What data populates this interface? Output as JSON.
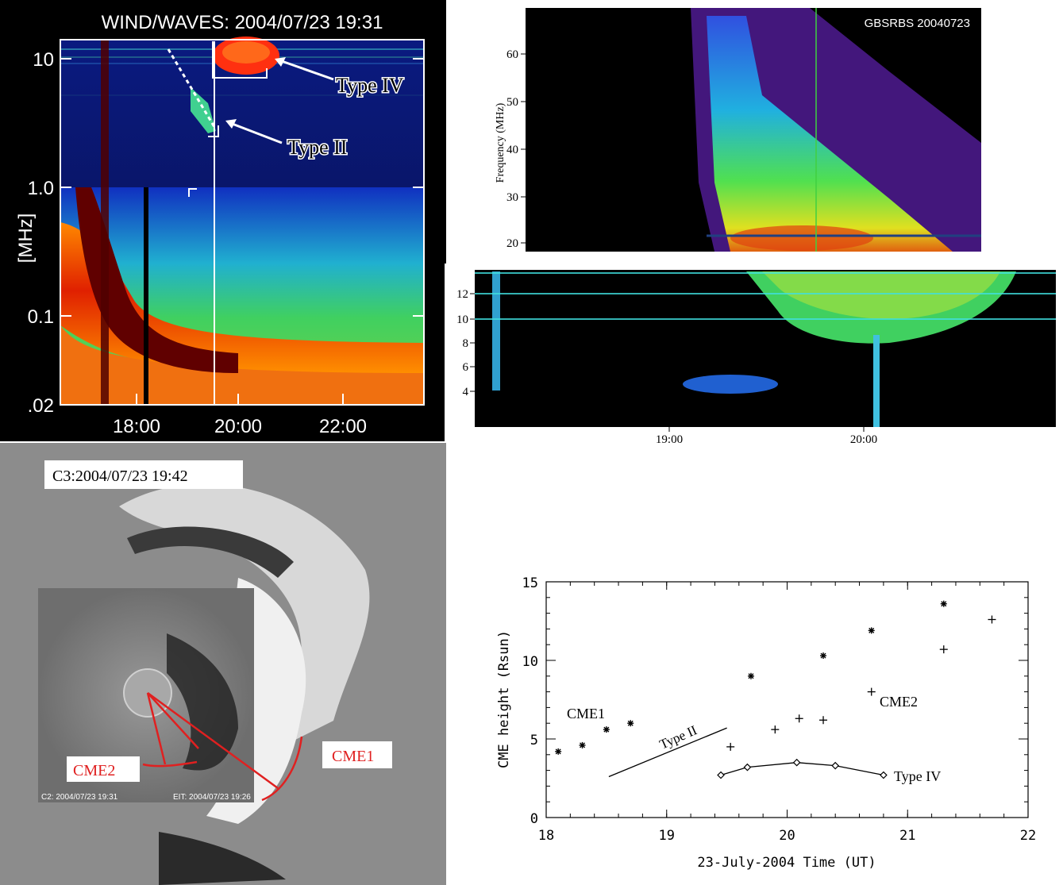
{
  "wind_waves": {
    "title": "WIND/WAVES: 2004/07/23 19:31",
    "ylabel": "[MHz]",
    "y_ticks": [
      "10",
      "1.0",
      "0.1",
      ".02"
    ],
    "x_ticks": [
      "18:00",
      "20:00",
      "22:00"
    ],
    "annotations": [
      "Type IV",
      "Type II"
    ]
  },
  "gbsrbs": {
    "label": "GBSRBS 20040723",
    "ylabel": "Frequency (MHz)",
    "y_ticks": [
      "60",
      "50",
      "40",
      "30",
      "20"
    ]
  },
  "lower_spectrum": {
    "y_ticks": [
      "12",
      "10",
      "8",
      "6",
      "4"
    ],
    "x_ticks": [
      "19:00",
      "20:00"
    ]
  },
  "lasco": {
    "c3_label": "C3:2004/07/23 19:42",
    "c2_label": "C2: 2004/07/23 19:31",
    "eit_label": "EIT: 2004/07/23 19:26",
    "cme1_label": "CME1",
    "cme2_label": "CME2"
  },
  "chart_data": {
    "type": "scatter",
    "xlabel": "23-July-2004 Time (UT)",
    "ylabel": "CME height (Rsun)",
    "xlim": [
      18,
      22
    ],
    "ylim": [
      0,
      15
    ],
    "x_ticks": [
      "18",
      "19",
      "20",
      "21",
      "22"
    ],
    "y_ticks": [
      "0",
      "5",
      "10",
      "15"
    ],
    "series": [
      {
        "name": "CME1",
        "marker": "asterisk",
        "x": [
          18.1,
          18.3,
          18.5,
          18.7,
          19.7,
          20.3,
          20.7,
          21.3
        ],
        "y": [
          4.2,
          4.6,
          5.6,
          6.0,
          9.0,
          10.3,
          11.9,
          13.6
        ]
      },
      {
        "name": "CME2",
        "marker": "plus",
        "x": [
          19.53,
          19.9,
          20.1,
          20.3,
          20.7,
          21.3,
          21.7
        ],
        "y": [
          4.5,
          5.6,
          6.3,
          6.2,
          8.0,
          10.7,
          12.6
        ]
      },
      {
        "name": "Type IV",
        "marker": "diamond",
        "line": true,
        "x": [
          19.45,
          19.67,
          20.08,
          20.4,
          20.8
        ],
        "y": [
          2.7,
          3.2,
          3.5,
          3.3,
          2.7
        ]
      },
      {
        "name": "Type II",
        "marker": "none",
        "line": true,
        "x": [
          18.52,
          19.5
        ],
        "y": [
          2.6,
          5.7
        ]
      }
    ],
    "labels": {
      "cme1": "CME1",
      "cme2": "CME2",
      "type2": "Type II",
      "type4": "Type IV"
    }
  }
}
